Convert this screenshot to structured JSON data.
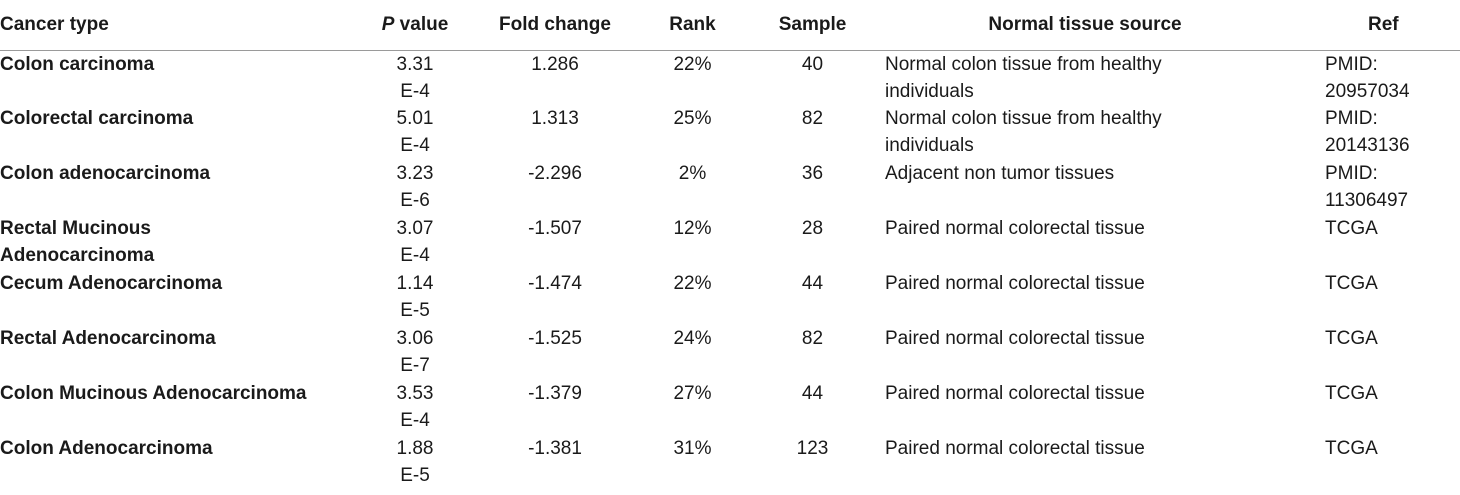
{
  "headers": {
    "cancer_type": "Cancer type",
    "p_letter": "P",
    "p_rest": " value",
    "fold_change": "Fold change",
    "rank": "Rank",
    "sample": "Sample",
    "normal_tissue_source": "Normal tissue source",
    "ref": "Ref"
  },
  "rows": [
    {
      "cancer": "Colon carcinoma",
      "p": "3.31E-4",
      "fold": "1.286",
      "rank": "22%",
      "sample": "40",
      "source": "Normal colon tissue from healthy individuals",
      "ref": "PMID: 20957034"
    },
    {
      "cancer": "Colorectal carcinoma",
      "p": "5.01E-4",
      "fold": "1.313",
      "rank": "25%",
      "sample": "82",
      "source": "Normal colon tissue from healthy individuals",
      "ref": "PMID: 20143136"
    },
    {
      "cancer": "Colon adenocarcinoma",
      "p": "3.23E-6",
      "fold": "-2.296",
      "rank": "2%",
      "sample": "36",
      "source": "Adjacent non tumor tissues",
      "ref": "PMID: 11306497"
    },
    {
      "cancer": "Rectal Mucinous Adenocarcinoma",
      "p": "3.07E-4",
      "fold": "-1.507",
      "rank": "12%",
      "sample": "28",
      "source": "Paired normal colorectal tissue",
      "ref": "TCGA"
    },
    {
      "cancer": "Cecum Adenocarcinoma",
      "p": "1.14E-5",
      "fold": "-1.474",
      "rank": "22%",
      "sample": "44",
      "source": "Paired normal colorectal tissue",
      "ref": "TCGA"
    },
    {
      "cancer": "Rectal Adenocarcinoma",
      "p": "3.06E-7",
      "fold": "-1.525",
      "rank": "24%",
      "sample": "82",
      "source": "Paired normal colorectal tissue",
      "ref": "TCGA"
    },
    {
      "cancer": "Colon Mucinous Adenocarcinoma",
      "p": "3.53E-4",
      "fold": "-1.379",
      "rank": "27%",
      "sample": "44",
      "source": "Paired normal colorectal tissue",
      "ref": "TCGA"
    },
    {
      "cancer": "Colon Adenocarcinoma",
      "p": "1.88E-5",
      "fold": "-1.381",
      "rank": "31%",
      "sample": "123",
      "source": "Paired normal colorectal tissue",
      "ref": "TCGA"
    }
  ]
}
